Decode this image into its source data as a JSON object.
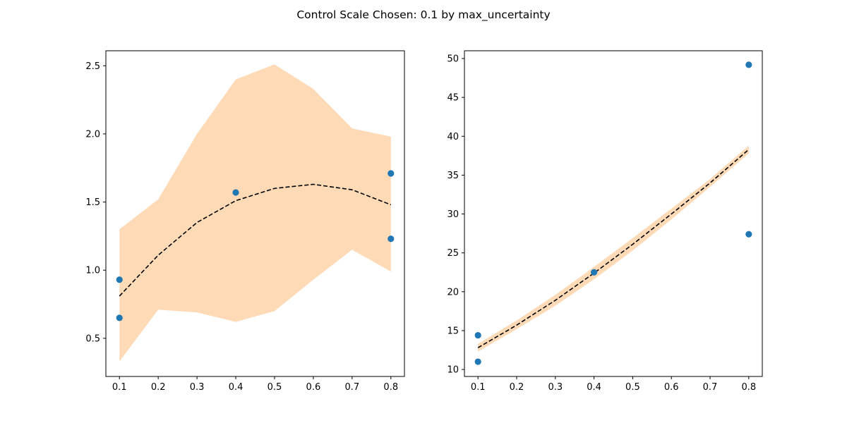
{
  "figure": {
    "suptitle": "Control Scale Chosen: 0.1 by max_uncertainty"
  },
  "colors": {
    "points": "#1f77b4",
    "band": "#ffdab7",
    "mean_line": "#000000",
    "axes": "#000000",
    "background": "#ffffff"
  },
  "chart_data": [
    {
      "type": "scatter",
      "grid": false,
      "xlim": [
        0.065,
        0.835
      ],
      "ylim": [
        0.22,
        2.61
      ],
      "xticks": [
        0.1,
        0.2,
        0.3,
        0.4,
        0.5,
        0.6,
        0.7,
        0.8
      ],
      "xtick_labels": [
        "0.1",
        "0.2",
        "0.3",
        "0.4",
        "0.5",
        "0.6",
        "0.7",
        "0.8"
      ],
      "yticks": [
        0.5,
        1.0,
        1.5,
        2.0,
        2.5
      ],
      "ytick_labels": [
        "0.5",
        "1.0",
        "1.5",
        "2.0",
        "2.5"
      ],
      "points": {
        "x": [
          0.1,
          0.1,
          0.4,
          0.8,
          0.8
        ],
        "y": [
          0.93,
          0.65,
          1.57,
          1.71,
          1.23
        ]
      },
      "mean": {
        "x": [
          0.1,
          0.2,
          0.3,
          0.4,
          0.5,
          0.6,
          0.7,
          0.8
        ],
        "y": [
          0.81,
          1.11,
          1.35,
          1.51,
          1.6,
          1.63,
          1.59,
          1.48
        ]
      },
      "band": {
        "x": [
          0.1,
          0.2,
          0.3,
          0.4,
          0.5,
          0.6,
          0.7,
          0.8
        ],
        "upper": [
          1.3,
          1.52,
          2.0,
          2.4,
          2.51,
          2.33,
          2.04,
          1.98
        ],
        "lower": [
          0.33,
          0.71,
          0.69,
          0.62,
          0.7,
          0.93,
          1.15,
          0.99
        ]
      }
    },
    {
      "type": "scatter",
      "grid": false,
      "xlim": [
        0.065,
        0.835
      ],
      "ylim": [
        9.1,
        51.0
      ],
      "xticks": [
        0.1,
        0.2,
        0.3,
        0.4,
        0.5,
        0.6,
        0.7,
        0.8
      ],
      "xtick_labels": [
        "0.1",
        "0.2",
        "0.3",
        "0.4",
        "0.5",
        "0.6",
        "0.7",
        "0.8"
      ],
      "yticks": [
        10,
        15,
        20,
        25,
        30,
        35,
        40,
        45,
        50
      ],
      "ytick_labels": [
        "10",
        "15",
        "20",
        "25",
        "30",
        "35",
        "40",
        "45",
        "50"
      ],
      "points": {
        "x": [
          0.1,
          0.1,
          0.4,
          0.8,
          0.8
        ],
        "y": [
          14.4,
          11.0,
          22.5,
          49.2,
          27.4
        ]
      },
      "mean": {
        "x": [
          0.1,
          0.2,
          0.3,
          0.4,
          0.5,
          0.6,
          0.7,
          0.8
        ],
        "y": [
          12.8,
          15.7,
          18.9,
          22.4,
          26.1,
          30.0,
          34.0,
          38.3
        ]
      },
      "band": {
        "x": [
          0.1,
          0.2,
          0.3,
          0.4,
          0.5,
          0.6,
          0.7,
          0.8
        ],
        "upper": [
          13.3,
          16.3,
          19.6,
          23.2,
          26.9,
          30.7,
          34.5,
          38.8
        ],
        "lower": [
          12.3,
          15.2,
          18.2,
          21.6,
          25.3,
          29.3,
          33.5,
          37.8
        ]
      }
    }
  ]
}
